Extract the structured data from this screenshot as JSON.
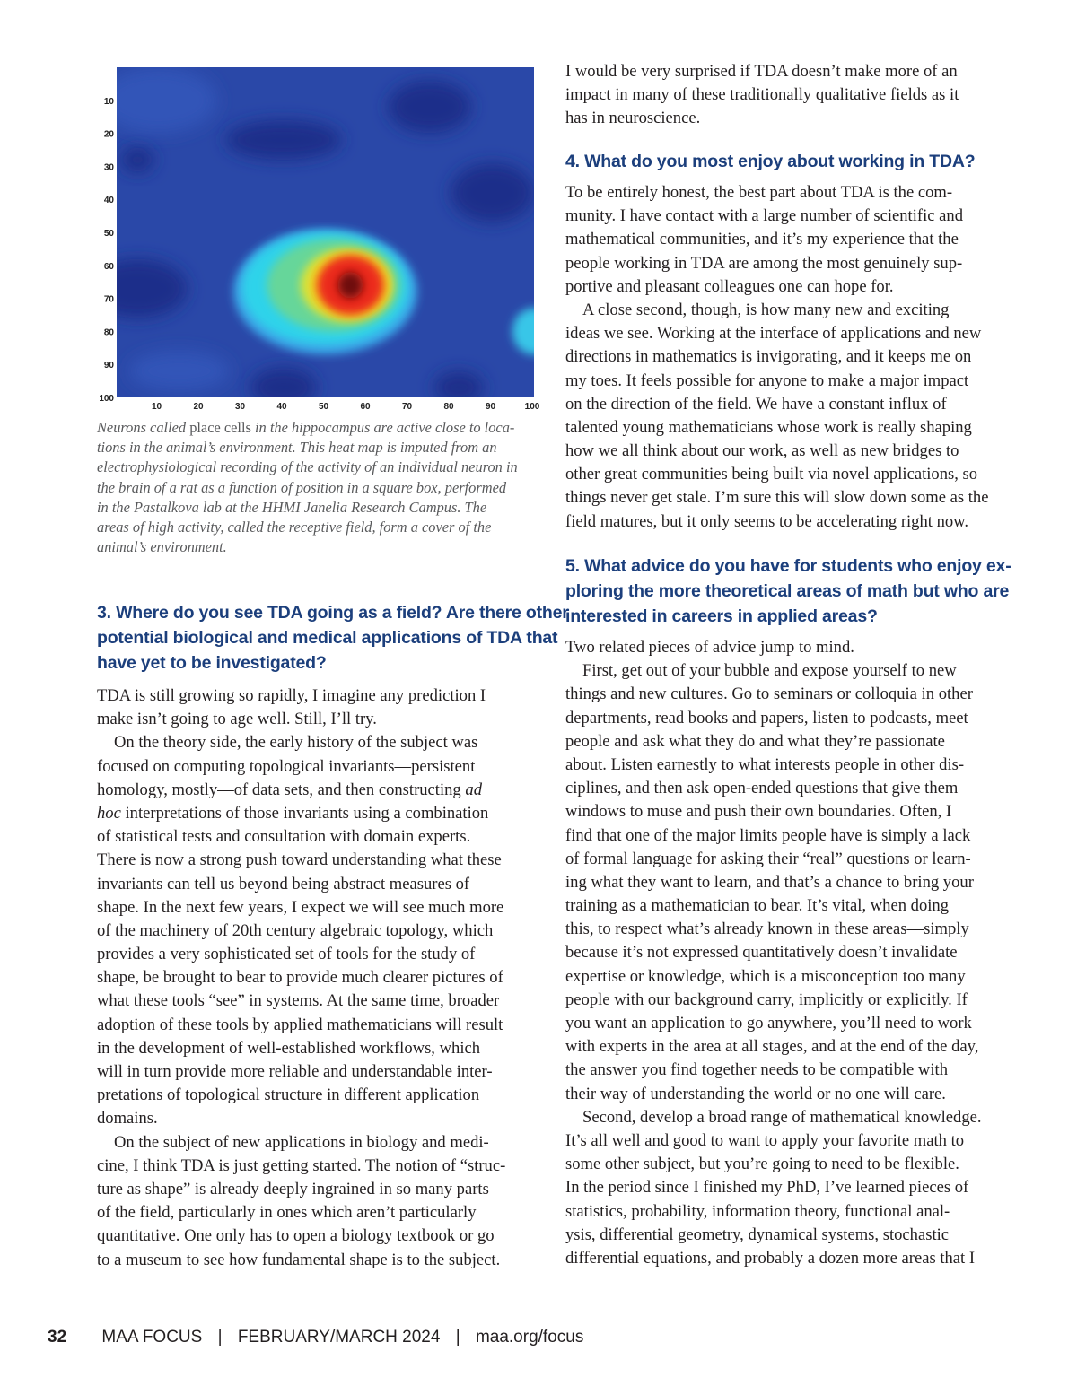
{
  "figure": {
    "type": "heatmap",
    "x_ticks": [
      "10",
      "20",
      "30",
      "40",
      "50",
      "60",
      "70",
      "80",
      "90",
      "100"
    ],
    "y_ticks": [
      "10",
      "20",
      "30",
      "40",
      "50",
      "60",
      "70",
      "80",
      "90",
      "100"
    ],
    "xlim": [
      0,
      100
    ],
    "ylim": [
      0,
      100
    ],
    "colormap": "jet",
    "peak": {
      "x": 56,
      "y": 66
    },
    "secondary_hotspot": {
      "x": 100,
      "y": 80
    },
    "caption": [
      [
        {
          "t": "Neurons called "
        },
        {
          "t": "place cells",
          "r": true
        },
        {
          "t": " in the hippocampus are active close to loca-"
        }
      ],
      [
        {
          "t": "tions in the animal’s environment. This heat map is imputed from an"
        }
      ],
      [
        {
          "t": "electrophysiological recording of the activity of an individual neuron in"
        }
      ],
      [
        {
          "t": "the brain of a rat as a function of position in a square box, performed"
        }
      ],
      [
        {
          "t": "in the Pastalkova lab at the HHMI Janelia Research Campus. The"
        }
      ],
      [
        {
          "t": "areas of high activity, called the receptive field, form a cover of the"
        }
      ],
      [
        {
          "t": "animal’s environment."
        }
      ]
    ]
  },
  "left": {
    "q3_heading": [
      "3. Where do you see TDA going as a field? Are there other",
      "potential biological and medical applications of TDA that",
      "have yet to be investigated?"
    ],
    "q3_body": [
      [
        [
          {
            "t": "TDA is still growing so rapidly, I imagine any prediction I"
          }
        ],
        [
          {
            "t": "make isn’t going to age well. Still, I’ll try."
          }
        ]
      ],
      [
        [
          {
            "t": "On the theory side, the early history of the subject was"
          }
        ],
        [
          {
            "t": "focused on computing topological invariants—persistent"
          }
        ],
        [
          {
            "t": "homology, mostly—of data sets, and then constructing "
          },
          {
            "t": "ad",
            "i": true
          }
        ],
        [
          {
            "t": "hoc",
            "i": true
          },
          {
            "t": " interpretations of those invariants using a combination"
          }
        ],
        [
          {
            "t": "of statistical tests and consultation with domain experts."
          }
        ],
        [
          {
            "t": "There is now a strong push toward understanding what these"
          }
        ],
        [
          {
            "t": "invariants can tell us beyond being abstract measures of"
          }
        ],
        [
          {
            "t": "shape. In the next few years, I expect we will see much more"
          }
        ],
        [
          {
            "t": "of the machinery of 20th century algebraic topology, which"
          }
        ],
        [
          {
            "t": "provides a very sophisticated set of tools for the study of"
          }
        ],
        [
          {
            "t": "shape, be brought to bear to provide much clearer pictures of"
          }
        ],
        [
          {
            "t": "what these tools “see” in systems. At the same time, broader"
          }
        ],
        [
          {
            "t": "adoption of these tools by applied mathematicians will result"
          }
        ],
        [
          {
            "t": "in the development of well-established workflows, which"
          }
        ],
        [
          {
            "t": "will in turn provide more reliable and understandable inter-"
          }
        ],
        [
          {
            "t": "pretations of topological structure in different application"
          }
        ],
        [
          {
            "t": "domains."
          }
        ]
      ],
      [
        [
          {
            "t": "On the subject of new applications in biology and medi-"
          }
        ],
        [
          {
            "t": "cine, I think TDA is just getting started. The notion of “struc-"
          }
        ],
        [
          {
            "t": "ture as shape” is already deeply ingrained in so many parts"
          }
        ],
        [
          {
            "t": "of the field, particularly in ones which aren’t particularly"
          }
        ],
        [
          {
            "t": "quantitative. One only has to open a biology textbook or go"
          }
        ],
        [
          {
            "t": "to a museum to see how fundamental shape is to the subject."
          }
        ]
      ]
    ]
  },
  "right": {
    "intro": [
      [
        [
          {
            "t": "I would be very surprised if TDA doesn’t make more of an"
          }
        ],
        [
          {
            "t": "impact in many of these traditionally qualitative fields as it"
          }
        ],
        [
          {
            "t": "has in neuroscience."
          }
        ]
      ]
    ],
    "q4_heading": [
      "4. What do you most enjoy about working in TDA?"
    ],
    "q4_body": [
      [
        [
          {
            "t": "To be entirely honest, the best part about TDA is the com-"
          }
        ],
        [
          {
            "t": "munity. I have contact with a large number of scientific and"
          }
        ],
        [
          {
            "t": "mathematical communities, and it’s my experience that the"
          }
        ],
        [
          {
            "t": "people working in TDA are among the most genuinely sup-"
          }
        ],
        [
          {
            "t": "portive and pleasant colleagues one can hope for."
          }
        ]
      ],
      [
        [
          {
            "t": "A close second, though, is how many new and exciting"
          }
        ],
        [
          {
            "t": "ideas we see. Working at the interface of applications and new"
          }
        ],
        [
          {
            "t": "directions in mathematics is invigorating, and it keeps me on"
          }
        ],
        [
          {
            "t": "my toes. It feels possible for anyone to make a major impact"
          }
        ],
        [
          {
            "t": "on the direction of the field. We have a constant influx of"
          }
        ],
        [
          {
            "t": "talented young mathematicians whose work is really shaping"
          }
        ],
        [
          {
            "t": "how we all think about our work, as well as new bridges to"
          }
        ],
        [
          {
            "t": "other great communities being built via novel applications, so"
          }
        ],
        [
          {
            "t": "things never get stale. I’m sure this will slow down some as the"
          }
        ],
        [
          {
            "t": "field matures, but it only seems to be accelerating right now."
          }
        ]
      ]
    ],
    "q5_heading": [
      "5. What advice do you have for students who enjoy ex-",
      "ploring the more theoretical areas of math but who are",
      "interested in careers in applied areas?"
    ],
    "q5_body": [
      [
        [
          {
            "t": "Two related pieces of advice jump to mind."
          }
        ]
      ],
      [
        [
          {
            "t": "First, get out of your bubble and expose yourself to new"
          }
        ],
        [
          {
            "t": "things and new cultures. Go to seminars or colloquia in other"
          }
        ],
        [
          {
            "t": "departments, read books and papers, listen to podcasts, meet"
          }
        ],
        [
          {
            "t": "people and ask what they do and what they’re passionate"
          }
        ],
        [
          {
            "t": "about. Listen earnestly to what interests people in other dis-"
          }
        ],
        [
          {
            "t": "ciplines, and then ask open-ended questions that give them"
          }
        ],
        [
          {
            "t": "windows to muse and push their own boundaries. Often, I"
          }
        ],
        [
          {
            "t": "find that one of the major limits people have is simply a lack"
          }
        ],
        [
          {
            "t": "of formal language for asking their “real” questions or learn-"
          }
        ],
        [
          {
            "t": "ing what they want to learn, and that’s a chance to bring your"
          }
        ],
        [
          {
            "t": "training as a mathematician to bear. It’s vital, when doing"
          }
        ],
        [
          {
            "t": "this, to respect what’s already known in these areas—simply"
          }
        ],
        [
          {
            "t": "because it’s not expressed quantitatively doesn’t invalidate"
          }
        ],
        [
          {
            "t": "expertise or knowledge, which is a misconception too many"
          }
        ],
        [
          {
            "t": "people with our background carry, implicitly or explicitly. If"
          }
        ],
        [
          {
            "t": "you want an application to go anywhere, you’ll need to work"
          }
        ],
        [
          {
            "t": "with experts in the area at all stages, and at the end of the day,"
          }
        ],
        [
          {
            "t": "the answer you find together needs to be compatible with"
          }
        ],
        [
          {
            "t": "their way of understanding the world or no one will care."
          }
        ]
      ],
      [
        [
          {
            "t": "Second, develop a broad range of mathematical knowledge."
          }
        ],
        [
          {
            "t": "It’s all well and good to want to apply your favorite math to"
          }
        ],
        [
          {
            "t": "some other subject, but you’re going to need to be flexible."
          }
        ],
        [
          {
            "t": "In the period since I finished my PhD, I’ve learned pieces of"
          }
        ],
        [
          {
            "t": "statistics, probability, information theory, functional anal-"
          }
        ],
        [
          {
            "t": "ysis, differential geometry, dynamical systems, stochastic"
          }
        ],
        [
          {
            "t": "differential equations, and probably a dozen more areas that I"
          }
        ]
      ]
    ]
  },
  "footer": {
    "page_number": "32",
    "publication": "MAA FOCUS",
    "issue": "FEBRUARY/MARCH 2024",
    "url": "maa.org/focus",
    "separator": "|"
  },
  "colors": {
    "heading": "#1c3f7c",
    "text": "#231f20",
    "caption": "#58595b"
  }
}
